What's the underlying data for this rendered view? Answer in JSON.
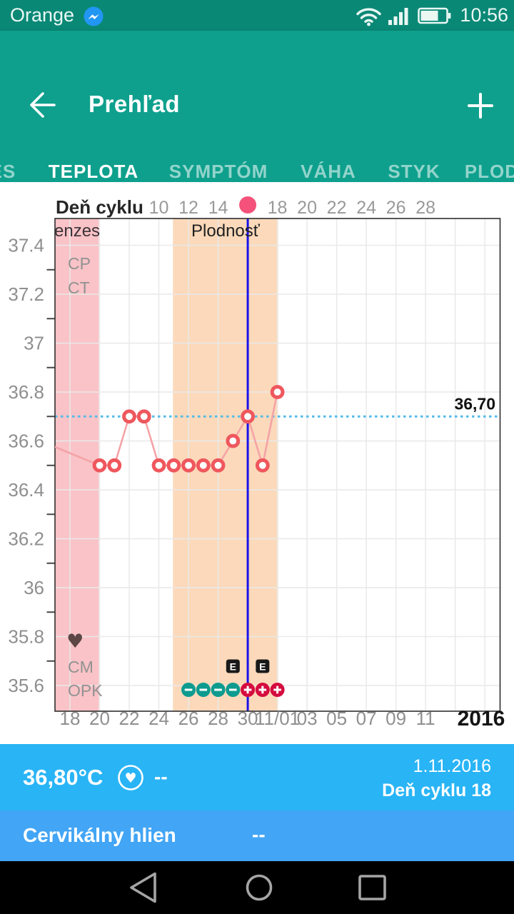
{
  "status_bar": {
    "carrier": "Orange",
    "time": "10:56",
    "icons": [
      "messenger-icon",
      "wifi-icon",
      "signal-strength-icon",
      "battery-icon"
    ]
  },
  "app_bar": {
    "title": "Prehľad",
    "back_icon": "arrow-left-icon",
    "add_icon": "plus-icon"
  },
  "tabs": {
    "items": [
      "MENZES",
      "TEPLOTA",
      "SYMPTÓM",
      "VÁHA",
      "STYK",
      "PLODNOSŤ"
    ],
    "active": "TEPLOTA"
  },
  "chart_data": {
    "type": "line",
    "top_axis": {
      "title": "Deň cyklu",
      "ticks": [
        {
          "label": "10",
          "i": 6
        },
        {
          "label": "12",
          "i": 8
        },
        {
          "label": "14",
          "i": 10
        },
        {
          "label": "18",
          "i": 14
        },
        {
          "label": "20",
          "i": 16
        },
        {
          "label": "22",
          "i": 18
        },
        {
          "label": "24",
          "i": 20
        },
        {
          "label": "26",
          "i": 22
        },
        {
          "label": "28",
          "i": 24
        }
      ],
      "ovulation_dot_i": 12
    },
    "y_axis": {
      "tick_labels": [
        "37.4",
        "37.2",
        "37",
        "36.8",
        "36.6",
        "36.4",
        "36.2",
        "36",
        "35.8",
        "35.6"
      ],
      "tick_values": [
        37.4,
        37.2,
        37.0,
        36.8,
        36.6,
        36.4,
        36.2,
        36.0,
        35.8,
        35.6
      ],
      "ylim": [
        35.49,
        37.51
      ]
    },
    "x_axis": {
      "ticks": [
        {
          "label": "18",
          "i": 0
        },
        {
          "label": "20",
          "i": 2
        },
        {
          "label": "22",
          "i": 4
        },
        {
          "label": "24",
          "i": 6
        },
        {
          "label": "26",
          "i": 8
        },
        {
          "label": "28",
          "i": 10
        },
        {
          "label": "30",
          "i": 12
        },
        {
          "label": "11/01",
          "i": 14
        },
        {
          "label": "03",
          "i": 16
        },
        {
          "label": "05",
          "i": 18
        },
        {
          "label": "07",
          "i": 20
        },
        {
          "label": "09",
          "i": 22
        },
        {
          "label": "11",
          "i": 24
        }
      ],
      "year": "2016"
    },
    "series": [
      {
        "name": "temperature",
        "unit": "°C",
        "lead_point": {
          "i": -2,
          "v": 36.6
        },
        "points": [
          {
            "i": 2,
            "v": 36.5
          },
          {
            "i": 3,
            "v": 36.5
          },
          {
            "i": 4,
            "v": 36.7
          },
          {
            "i": 5,
            "v": 36.7
          },
          {
            "i": 6,
            "v": 36.5
          },
          {
            "i": 7,
            "v": 36.5
          },
          {
            "i": 8,
            "v": 36.5
          },
          {
            "i": 9,
            "v": 36.5
          },
          {
            "i": 10,
            "v": 36.5
          },
          {
            "i": 11,
            "v": 36.6
          },
          {
            "i": 12,
            "v": 36.7
          },
          {
            "i": 13,
            "v": 36.5
          },
          {
            "i": 14,
            "v": 36.8
          }
        ]
      }
    ],
    "coverline": {
      "value": 36.7,
      "label": "36,70"
    },
    "today_line": {
      "i": 12
    },
    "bands": [
      {
        "name": "menses",
        "label": "Menzes",
        "from": -1.05,
        "to": 1.95
      },
      {
        "name": "fertility",
        "label": "Plodnosť",
        "from": 6.95,
        "to": 14.05
      }
    ],
    "row_labels": [
      "CP",
      "CT",
      "CM",
      "OPK"
    ],
    "opk_markers": [
      {
        "i": 8,
        "result": "negative"
      },
      {
        "i": 9,
        "result": "negative"
      },
      {
        "i": 10,
        "result": "negative"
      },
      {
        "i": 11,
        "result": "negative"
      },
      {
        "i": 12,
        "result": "positive"
      },
      {
        "i": 13,
        "result": "positive"
      },
      {
        "i": 14,
        "result": "positive"
      }
    ],
    "estrogen_markers": {
      "label": "E",
      "positions": [
        11,
        13
      ]
    },
    "intercourse_marker": {
      "glyph": "heart",
      "i": 0.35
    },
    "colors": {
      "menses": "#F9C3C7",
      "fertility": "#FBD9BA",
      "temp_point": "#EF575D",
      "temp_line": "#F5A3A7",
      "coverline": "#54BCE8",
      "today_line": "#1A12E8",
      "opk_negative": "#0D9B8F",
      "opk_positive": "#D50B3E",
      "ovulation_dot": "#F4527A",
      "grid": "#E9E9E9",
      "axis_text": "#8F8F8F",
      "heart": "#5C4646"
    }
  },
  "summary_panel": {
    "temperature": "36,80°C",
    "intercourse_value": "--",
    "date": "1.11.2016",
    "cycle_day": "Deň cyklu 18"
  },
  "detail_row": {
    "label": "Cervikálny hlien",
    "value": "--"
  },
  "nav_bar": {
    "icons": [
      "back-icon",
      "home-icon",
      "recents-icon"
    ]
  }
}
